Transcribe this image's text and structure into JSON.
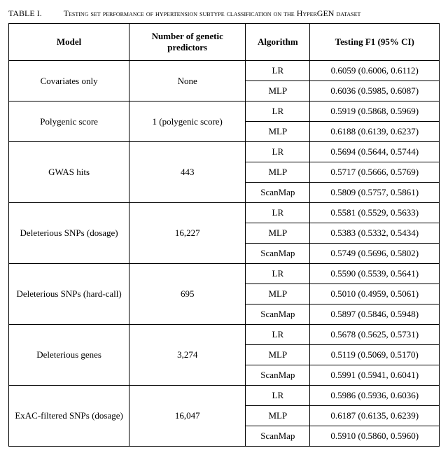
{
  "caption": {
    "label": "TABLE I.",
    "title": "Testing set performance of hypertension subtype classification on the HyperGEN dataset"
  },
  "columns": [
    "Model",
    "Number of genetic predictors",
    "Algorithm",
    "Testing F1 (95% CI)"
  ],
  "groups": [
    {
      "model": "Covariates only",
      "predictors": "None",
      "rows": [
        {
          "algo": "LR",
          "f1": "0.6059 (0.6006, 0.6112)"
        },
        {
          "algo": "MLP",
          "f1": "0.6036 (0.5985, 0.6087)"
        }
      ]
    },
    {
      "model": "Polygenic score",
      "predictors": "1 (polygenic score)",
      "rows": [
        {
          "algo": "LR",
          "f1": "0.5919 (0.5868, 0.5969)"
        },
        {
          "algo": "MLP",
          "f1": "0.6188 (0.6139, 0.6237)"
        }
      ]
    },
    {
      "model": "GWAS hits",
      "predictors": "443",
      "rows": [
        {
          "algo": "LR",
          "f1": "0.5694 (0.5644, 0.5744)"
        },
        {
          "algo": "MLP",
          "f1": "0.5717 (0.5666, 0.5769)"
        },
        {
          "algo": "ScanMap",
          "f1": "0.5809 (0.5757, 0.5861)"
        }
      ]
    },
    {
      "model": "Deleterious SNPs (dosage)",
      "predictors": "16,227",
      "rows": [
        {
          "algo": "LR",
          "f1": "0.5581 (0.5529, 0.5633)"
        },
        {
          "algo": "MLP",
          "f1": "0.5383 (0.5332, 0.5434)"
        },
        {
          "algo": "ScanMap",
          "f1": "0.5749 (0.5696, 0.5802)"
        }
      ]
    },
    {
      "model": "Deleterious SNPs (hard-call)",
      "predictors": "695",
      "rows": [
        {
          "algo": "LR",
          "f1": "0.5590 (0.5539, 0.5641)"
        },
        {
          "algo": "MLP",
          "f1": "0.5010 (0.4959, 0.5061)"
        },
        {
          "algo": "ScanMap",
          "f1": "0.5897 (0.5846, 0.5948)"
        }
      ]
    },
    {
      "model": "Deleterious genes",
      "predictors": "3,274",
      "rows": [
        {
          "algo": "LR",
          "f1": "0.5678 (0.5625, 0.5731)"
        },
        {
          "algo": "MLP",
          "f1": "0.5119 (0.5069, 0.5170)"
        },
        {
          "algo": "ScanMap",
          "f1": "0.5991 (0.5941, 0.6041)"
        }
      ]
    },
    {
      "model": "ExAC-filtered SNPs (dosage)",
      "predictors": "16,047",
      "rows": [
        {
          "algo": "LR",
          "f1": "0.5986 (0.5936, 0.6036)"
        },
        {
          "algo": "MLP",
          "f1": "0.6187 (0.6135, 0.6239)"
        },
        {
          "algo": "ScanMap",
          "f1": "0.5910 (0.5860, 0.5960)"
        }
      ]
    }
  ]
}
